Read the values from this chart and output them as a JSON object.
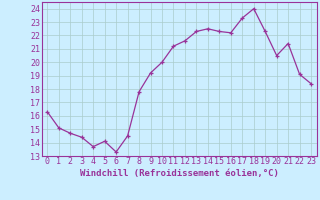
{
  "x": [
    0,
    1,
    2,
    3,
    4,
    5,
    6,
    7,
    8,
    9,
    10,
    11,
    12,
    13,
    14,
    15,
    16,
    17,
    18,
    19,
    20,
    21,
    22,
    23
  ],
  "y": [
    16.3,
    15.1,
    14.7,
    14.4,
    13.7,
    14.1,
    13.3,
    14.5,
    17.8,
    19.2,
    20.0,
    21.2,
    21.6,
    22.3,
    22.5,
    22.3,
    22.2,
    23.3,
    24.0,
    22.3,
    20.5,
    21.4,
    19.1,
    18.4
  ],
  "line_color": "#993399",
  "marker": "+",
  "marker_size": 3,
  "bg_color": "#cceeff",
  "grid_color": "#aacccc",
  "xlabel": "Windchill (Refroidissement éolien,°C)",
  "xlabel_fontsize": 6.5,
  "tick_fontsize": 6.0,
  "ylim": [
    13,
    24.5
  ],
  "yticks": [
    13,
    14,
    15,
    16,
    17,
    18,
    19,
    20,
    21,
    22,
    23,
    24
  ],
  "xticks": [
    0,
    1,
    2,
    3,
    4,
    5,
    6,
    7,
    8,
    9,
    10,
    11,
    12,
    13,
    14,
    15,
    16,
    17,
    18,
    19,
    20,
    21,
    22,
    23
  ],
  "linewidth": 0.9,
  "spine_color": "#993399"
}
